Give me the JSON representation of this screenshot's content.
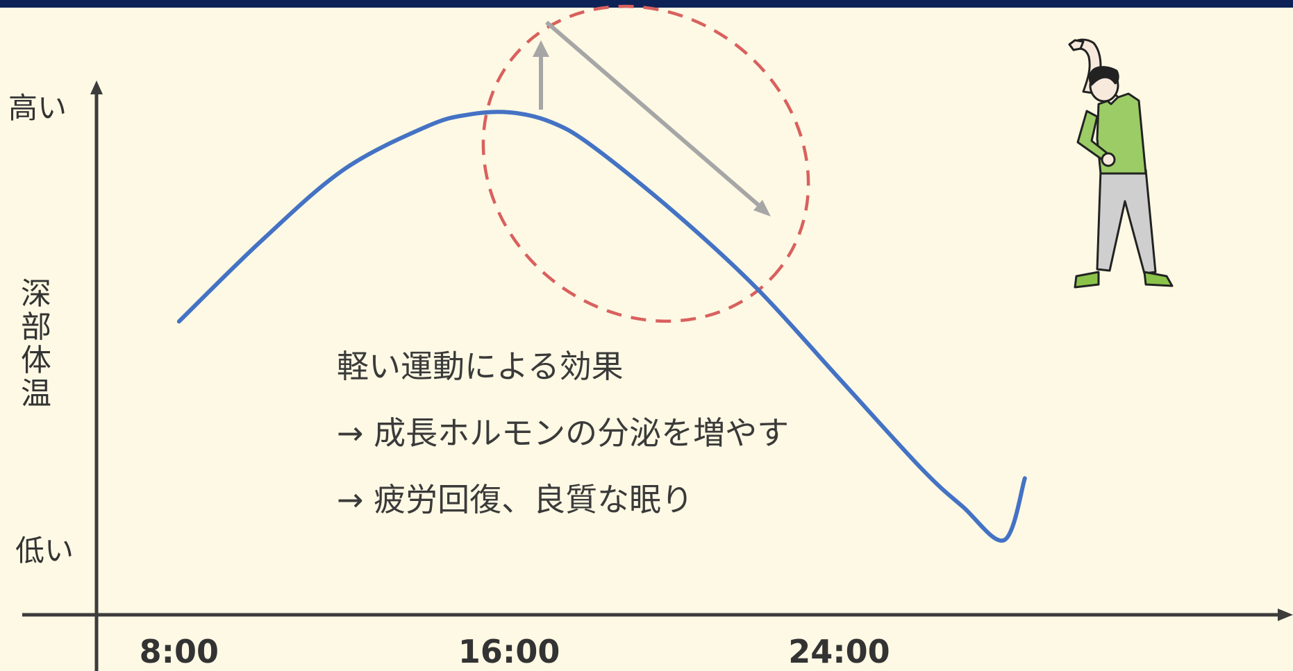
{
  "chart_data": {
    "type": "line",
    "title": "",
    "xlabel": "",
    "ylabel": "深部体温",
    "y_ticks": {
      "high": "高い",
      "low": "低い"
    },
    "x_ticks": [
      {
        "label": "8:00",
        "x": 8
      },
      {
        "label": "16:00",
        "x": 16
      },
      {
        "label": "24:00",
        "x": 24
      }
    ],
    "xlim": [
      6,
      35
    ],
    "ylim": [
      0,
      1
    ],
    "series": [
      {
        "color": "#4472c4",
        "x": [
          8,
          10,
          12,
          14,
          15,
          16,
          17,
          18,
          20,
          22,
          24,
          26,
          27,
          28,
          28.5
        ],
        "y": [
          0.55,
          0.72,
          0.87,
          0.96,
          0.985,
          0.99,
          0.97,
          0.92,
          0.78,
          0.62,
          0.43,
          0.24,
          0.16,
          0.09,
          0.22
        ]
      }
    ],
    "annotation": {
      "lines": [
        "軽い運動による効果",
        "→ 成長ホルモンの分泌を増やす",
        "→ 疲労回復、良質な眠り"
      ],
      "highlight_color": "#d9605e",
      "arrow_color": "#a6a6a6"
    }
  }
}
